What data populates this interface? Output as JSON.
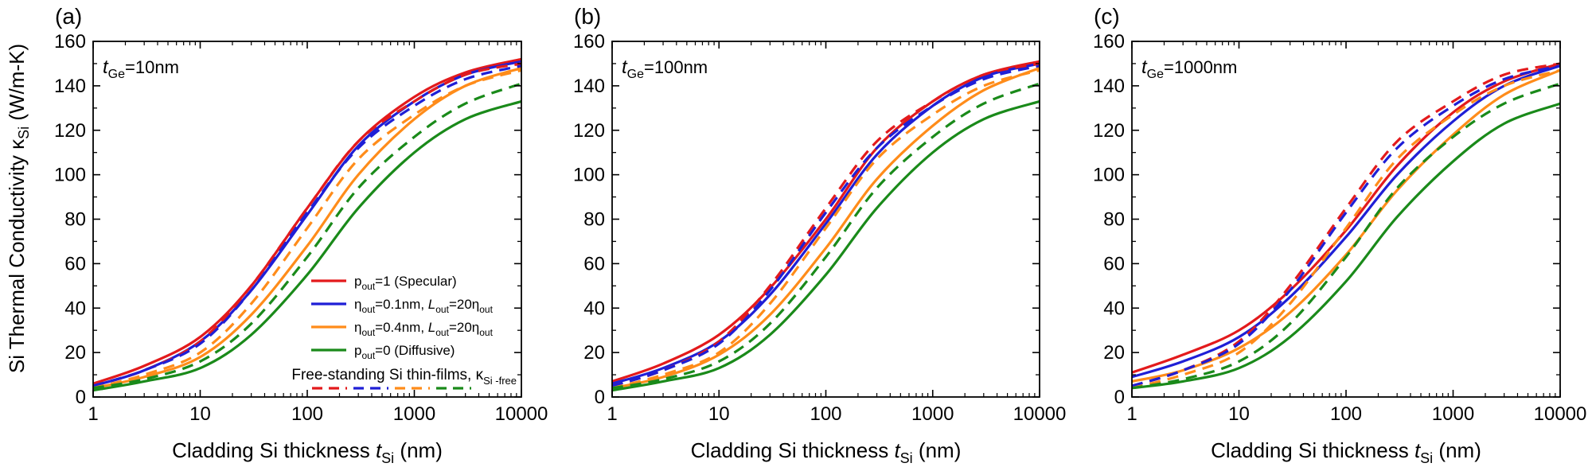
{
  "figure": {
    "ylabel_prefix": "Si Thermal Conductivity ",
    "ylabel_kappa": "κ",
    "ylabel_sub": "Si",
    "ylabel_suffix": "(W/m-K)",
    "xlabel_prefix": "Cladding Si thickness ",
    "xlabel_t": "t",
    "xlabel_sub": "Si",
    "xlabel_suffix": " (nm)"
  },
  "legend": {
    "entries": [
      {
        "key": "specular",
        "text": "p",
        "sub": "out",
        "rest": "=1 (Specular)"
      },
      {
        "key": "eta01",
        "text": "η",
        "sub": "out",
        "rest": "=0.1nm, ",
        "italic": "L",
        "sub2": "out",
        "rest2": "=20η",
        "sub3": "out"
      },
      {
        "key": "eta04",
        "text": "η",
        "sub": "out",
        "rest": "=0.4nm, ",
        "italic": "L",
        "sub2": "out",
        "rest2": "=20η",
        "sub3": "out"
      },
      {
        "key": "diffusive",
        "text": "p",
        "sub": "out",
        "rest": "=0 (Diffusive)"
      }
    ],
    "free_text": "Free-standing Si thin-films, κ",
    "free_sub": "Si -free"
  },
  "colors": {
    "specular": "#e31a1c",
    "eta01": "#1f1fd6",
    "eta04": "#ff8c1a",
    "diffusive": "#1a8a1a"
  },
  "chart_data": [
    {
      "type": "line",
      "panel_label": "(a)",
      "annotation": {
        "t": "t",
        "sub": "Ge",
        "rest": "=10nm"
      },
      "xscale": "log",
      "xlim": [
        1,
        10000
      ],
      "ylim": [
        0,
        160
      ],
      "xticks": [
        "1",
        "10",
        "100",
        "1000",
        "10000"
      ],
      "yticks": [
        "0",
        "20",
        "40",
        "60",
        "80",
        "100",
        "120",
        "140",
        "160"
      ],
      "x": [
        1,
        3,
        10,
        30,
        100,
        300,
        1000,
        3000,
        10000
      ],
      "series": [
        {
          "key": "specular",
          "dash": false,
          "y": [
            6,
            14,
            27,
            50,
            85,
            115,
            135,
            146,
            152
          ]
        },
        {
          "key": "eta01",
          "dash": false,
          "y": [
            5,
            12,
            25,
            48,
            82,
            113,
            133,
            145,
            151
          ]
        },
        {
          "key": "eta04",
          "dash": false,
          "y": [
            4,
            9,
            18,
            37,
            68,
            100,
            125,
            140,
            148
          ]
        },
        {
          "key": "diffusive",
          "dash": false,
          "y": [
            3,
            7,
            13,
            28,
            55,
            85,
            110,
            125,
            133
          ]
        },
        {
          "key": "specular",
          "dash": true,
          "y": [
            5,
            12,
            25,
            50,
            85,
            115,
            133,
            145,
            150
          ]
        },
        {
          "key": "eta01",
          "dash": true,
          "y": [
            5,
            12,
            24,
            48,
            83,
            112,
            131,
            143,
            149
          ]
        },
        {
          "key": "eta04",
          "dash": true,
          "y": [
            4,
            10,
            20,
            42,
            76,
            107,
            127,
            140,
            147
          ]
        },
        {
          "key": "diffusive",
          "dash": true,
          "y": [
            4,
            8,
            16,
            33,
            63,
            94,
            117,
            132,
            141
          ]
        }
      ]
    },
    {
      "type": "line",
      "panel_label": "(b)",
      "annotation": {
        "t": "t",
        "sub": "Ge",
        "rest": "=100nm"
      },
      "xscale": "log",
      "xlim": [
        1,
        10000
      ],
      "ylim": [
        0,
        160
      ],
      "xticks": [
        "1",
        "10",
        "100",
        "1000",
        "10000"
      ],
      "yticks": [
        "0",
        "20",
        "40",
        "60",
        "80",
        "100",
        "120",
        "140",
        "160"
      ],
      "x": [
        1,
        3,
        10,
        30,
        100,
        300,
        1000,
        3000,
        10000
      ],
      "series": [
        {
          "key": "specular",
          "dash": false,
          "y": [
            7,
            15,
            28,
            49,
            80,
            112,
            133,
            145,
            151
          ]
        },
        {
          "key": "eta01",
          "dash": false,
          "y": [
            6,
            13,
            25,
            46,
            78,
            109,
            131,
            144,
            150
          ]
        },
        {
          "key": "eta04",
          "dash": false,
          "y": [
            4,
            9,
            19,
            37,
            67,
            98,
            122,
            138,
            148
          ]
        },
        {
          "key": "diffusive",
          "dash": false,
          "y": [
            3,
            7,
            13,
            28,
            55,
            85,
            110,
            125,
            133
          ]
        },
        {
          "key": "specular",
          "dash": true,
          "y": [
            5,
            12,
            25,
            50,
            85,
            115,
            133,
            145,
            150
          ]
        },
        {
          "key": "eta01",
          "dash": true,
          "y": [
            5,
            12,
            24,
            48,
            83,
            112,
            131,
            143,
            149
          ]
        },
        {
          "key": "eta04",
          "dash": true,
          "y": [
            4,
            10,
            20,
            42,
            76,
            107,
            127,
            140,
            147
          ]
        },
        {
          "key": "diffusive",
          "dash": true,
          "y": [
            4,
            8,
            16,
            33,
            63,
            94,
            117,
            132,
            141
          ]
        }
      ]
    },
    {
      "type": "line",
      "panel_label": "(c)",
      "annotation": {
        "t": "t",
        "sub": "Ge",
        "rest": "=1000nm"
      },
      "xscale": "log",
      "xlim": [
        1,
        10000
      ],
      "ylim": [
        0,
        160
      ],
      "xticks": [
        "1",
        "10",
        "100",
        "1000",
        "10000"
      ],
      "yticks": [
        "0",
        "20",
        "40",
        "60",
        "80",
        "100",
        "120",
        "140",
        "160"
      ],
      "x": [
        1,
        3,
        10,
        30,
        100,
        300,
        1000,
        3000,
        10000
      ],
      "series": [
        {
          "key": "specular",
          "dash": false,
          "y": [
            11,
            19,
            30,
            48,
            75,
            104,
            128,
            142,
            150
          ]
        },
        {
          "key": "eta01",
          "dash": false,
          "y": [
            9,
            16,
            27,
            45,
            72,
            100,
            124,
            140,
            149
          ]
        },
        {
          "key": "eta04",
          "dash": false,
          "y": [
            7,
            12,
            22,
            38,
            64,
            93,
            118,
            136,
            147
          ]
        },
        {
          "key": "diffusive",
          "dash": false,
          "y": [
            4,
            7,
            13,
            27,
            52,
            81,
            106,
            123,
            132
          ]
        },
        {
          "key": "specular",
          "dash": true,
          "y": [
            5,
            12,
            25,
            50,
            85,
            115,
            133,
            145,
            150
          ]
        },
        {
          "key": "eta01",
          "dash": true,
          "y": [
            5,
            12,
            24,
            48,
            83,
            112,
            131,
            143,
            149
          ]
        },
        {
          "key": "eta04",
          "dash": true,
          "y": [
            4,
            10,
            20,
            42,
            76,
            107,
            127,
            140,
            147
          ]
        },
        {
          "key": "diffusive",
          "dash": true,
          "y": [
            4,
            8,
            16,
            33,
            63,
            94,
            117,
            132,
            141
          ]
        }
      ]
    }
  ]
}
